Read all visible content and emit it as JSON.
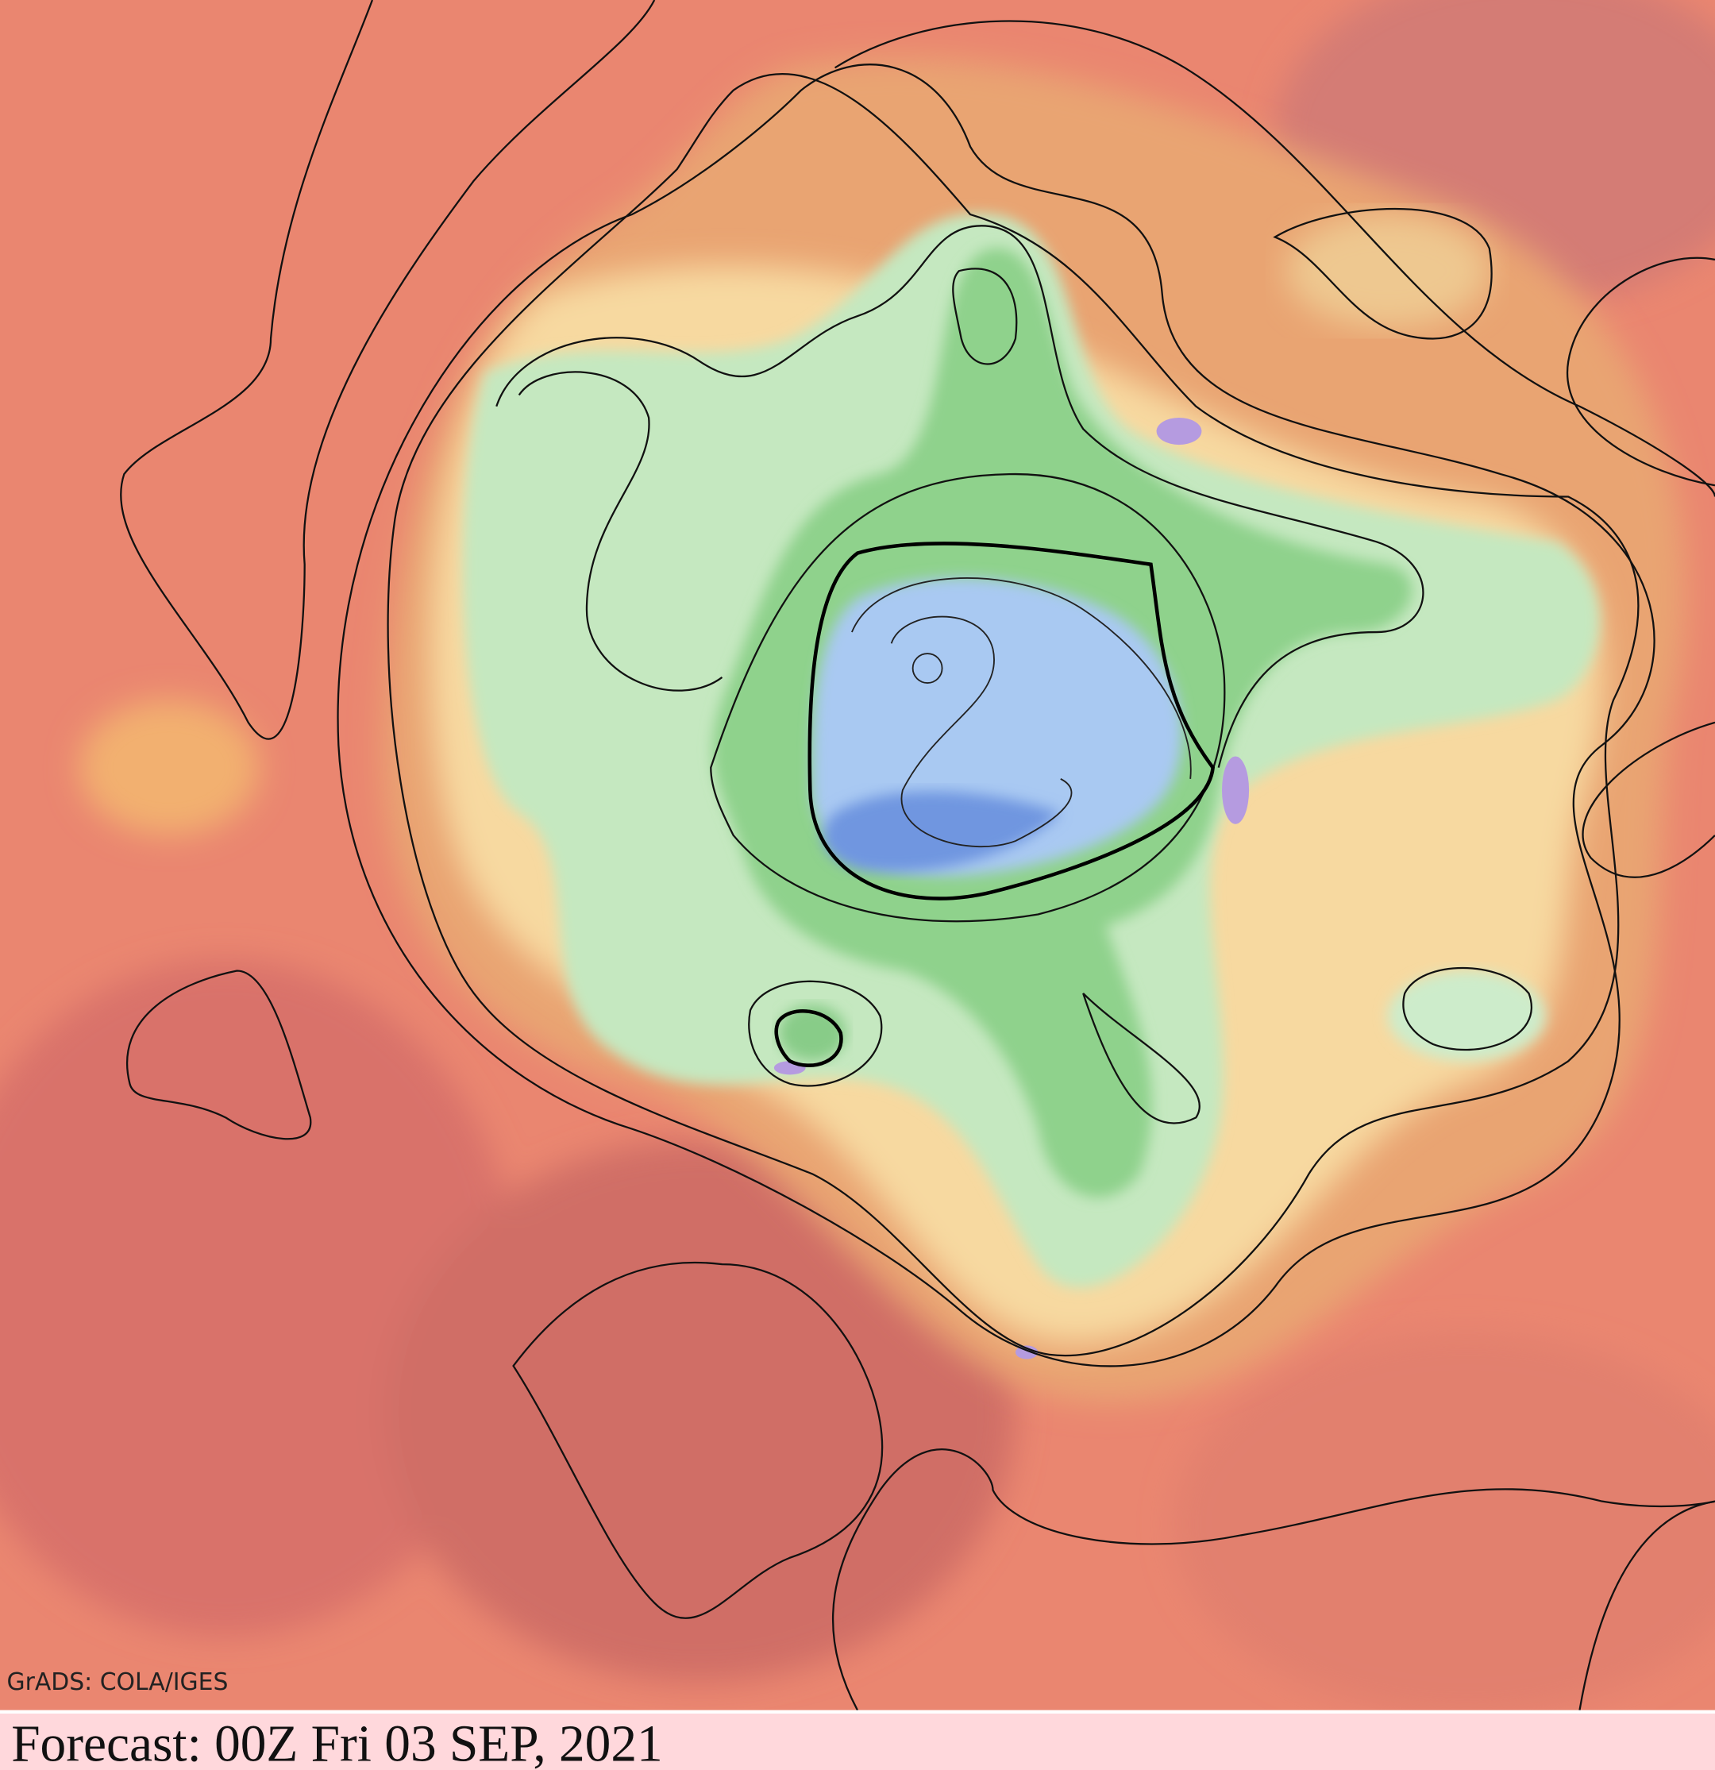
{
  "map": {
    "credit": "GrADS: COLA/IGES"
  },
  "footer": {
    "forecast": "Forecast: 00Z Fri 03 SEP, 2021"
  }
}
